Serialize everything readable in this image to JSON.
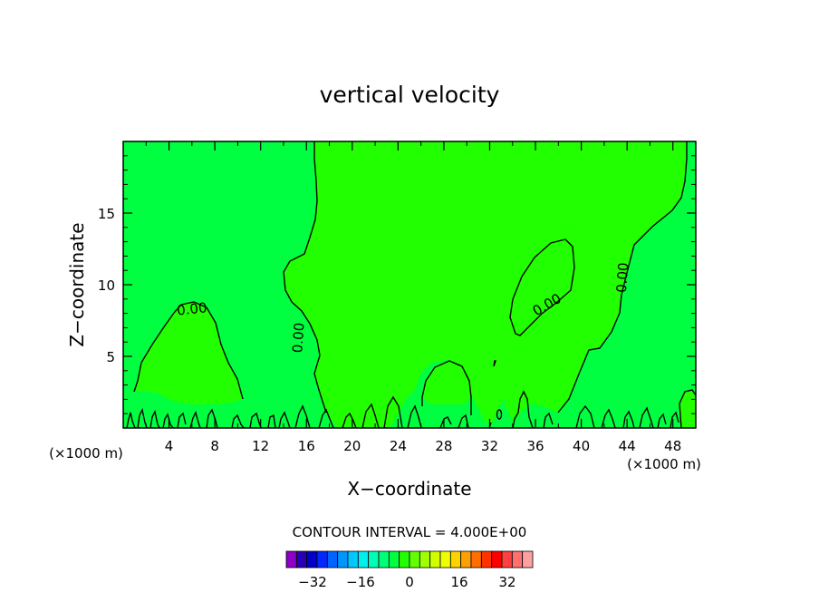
{
  "chart_data": {
    "type": "contour",
    "title": "vertical velocity",
    "xlabel": "X−coordinate",
    "ylabel": "Z−coordinate",
    "x_unit_left": "(×1000 m)",
    "x_unit_right": "(×1000 m)",
    "xlim": [
      0,
      50
    ],
    "ylim": [
      0,
      20
    ],
    "x_ticks": [
      4,
      8,
      12,
      16,
      20,
      24,
      28,
      32,
      36,
      40,
      44,
      48
    ],
    "y_ticks": [
      5,
      10,
      15
    ],
    "grid": false,
    "contour_interval_label": "CONTOUR INTERVAL = 4.000E+00",
    "contour_labels": [
      {
        "text": "0.00",
        "x": 6.0,
        "z": 8.3
      },
      {
        "text": "0.00",
        "x": 15.3,
        "z": 6.3
      },
      {
        "text": "0.00",
        "x": 37.0,
        "z": 8.6
      },
      {
        "text": "0.00",
        "x": 43.6,
        "z": 10.5
      }
    ],
    "colors": {
      "negative_region": "#00ff40",
      "positive_region": "#22ff00",
      "contour_line": "#000000"
    },
    "colorbar": {
      "colors": [
        "#8c00c8",
        "#2800b4",
        "#0000c8",
        "#0028ff",
        "#0064ff",
        "#0096ff",
        "#00c8ff",
        "#00f0f0",
        "#00ffb4",
        "#00ff78",
        "#00ff40",
        "#22ff00",
        "#64ff00",
        "#a0ff00",
        "#d2ff00",
        "#f0ff00",
        "#ffd200",
        "#ffa000",
        "#ff6e00",
        "#ff3200",
        "#ff0000",
        "#ff4040",
        "#ff7070",
        "#ffa0a0"
      ],
      "labels": [
        "−32",
        "−16",
        "0",
        "16",
        "32"
      ]
    }
  }
}
